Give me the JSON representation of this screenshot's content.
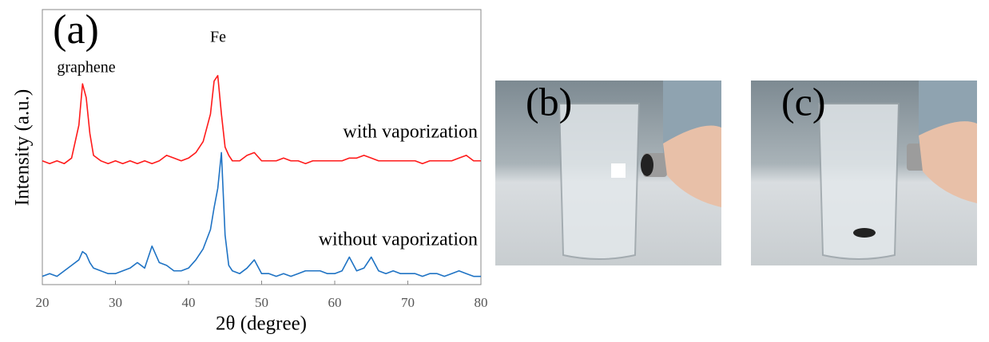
{
  "chart_data": {
    "type": "line",
    "panel_label": "(a)",
    "x_label": "2θ (degree)",
    "y_label": "Intensity (a.u.)",
    "annotations": [
      "graphene",
      "Fe",
      "with vaporization",
      "without vaporization"
    ],
    "x": [
      20,
      21,
      22,
      23,
      24,
      25,
      25.5,
      26,
      26.5,
      27,
      28,
      29,
      30,
      31,
      32,
      33,
      34,
      35,
      36,
      37,
      38,
      39,
      40,
      41,
      42,
      43,
      43.5,
      44,
      44.5,
      45,
      45.5,
      46,
      47,
      48,
      49,
      50,
      51,
      52,
      53,
      54,
      55,
      56,
      57,
      58,
      59,
      60,
      61,
      62,
      63,
      64,
      65,
      66,
      67,
      68,
      69,
      70,
      71,
      72,
      73,
      74,
      75,
      76,
      77,
      78,
      79,
      80
    ],
    "series": [
      {
        "name": "with vaporization",
        "color": "#ff1a1a",
        "values": [
          45,
          44,
          45,
          44,
          46,
          58,
          73,
          68,
          55,
          47,
          45,
          44,
          45,
          44,
          45,
          44,
          45,
          44,
          45,
          47,
          46,
          45,
          46,
          48,
          52,
          62,
          74,
          76,
          62,
          50,
          47,
          45,
          45,
          47,
          48,
          45,
          45,
          45,
          46,
          45,
          45,
          44,
          45,
          45,
          45,
          45,
          45,
          46,
          46,
          47,
          46,
          45,
          45,
          45,
          45,
          45,
          45,
          44,
          45,
          45,
          45,
          45,
          46,
          47,
          45,
          45
        ]
      },
      {
        "name": "without vaporization",
        "color": "#1f73c4",
        "values": [
          3,
          4,
          3,
          5,
          7,
          9,
          12,
          11,
          8,
          6,
          5,
          4,
          4,
          5,
          6,
          8,
          6,
          14,
          8,
          7,
          5,
          5,
          6,
          9,
          13,
          20,
          28,
          35,
          48,
          18,
          7,
          5,
          4,
          6,
          9,
          4,
          4,
          3,
          4,
          3,
          4,
          5,
          5,
          5,
          4,
          4,
          5,
          10,
          5,
          6,
          10,
          5,
          4,
          5,
          4,
          4,
          4,
          3,
          4,
          4,
          3,
          4,
          5,
          4,
          3,
          3
        ]
      }
    ],
    "xlim": [
      20,
      80
    ],
    "xticks": [
      20,
      30,
      40,
      50,
      60,
      70,
      80
    ],
    "ylim": [
      0,
      100
    ]
  },
  "panels": [
    {
      "label": "(b)"
    },
    {
      "label": "(c)"
    }
  ]
}
